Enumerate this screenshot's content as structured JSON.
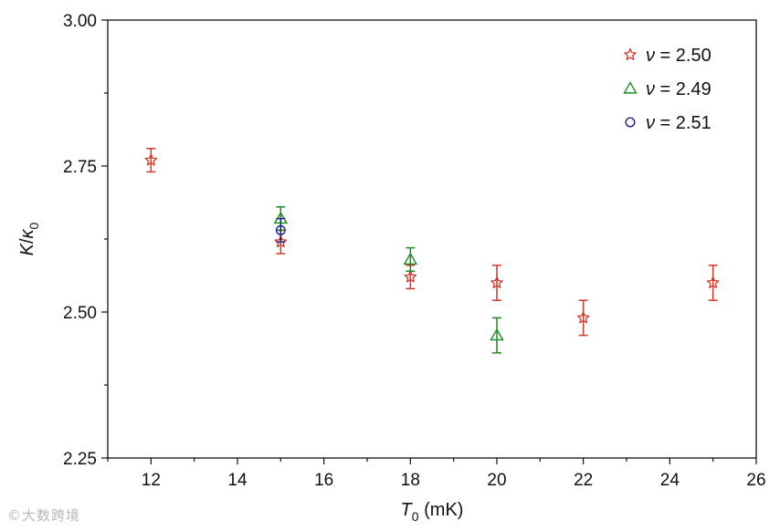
{
  "chart_data": {
    "type": "scatter",
    "xlabel": {
      "symbol": "T",
      "sub": "0",
      "unit": " (mK)"
    },
    "ylabel": {
      "num": "K",
      "den": "κ",
      "sub": "0"
    },
    "xlim": [
      11,
      26
    ],
    "ylim": [
      2.25,
      3.0
    ],
    "x_ticks": [
      12,
      14,
      16,
      18,
      20,
      22,
      24,
      26
    ],
    "y_ticks": [
      2.25,
      2.5,
      2.75,
      3.0
    ],
    "y_tick_labels": [
      "2.25",
      "2.50",
      "2.75",
      "3.00"
    ],
    "grid": false,
    "legend_position": "top-right",
    "series": [
      {
        "name": "ν = 2.50",
        "legend_symbol": "ν",
        "legend_value": " = 2.50",
        "marker": "star",
        "color": "#d03a2c",
        "x": [
          12,
          15,
          18,
          20,
          22,
          25
        ],
        "y": [
          2.76,
          2.62,
          2.56,
          2.55,
          2.49,
          2.55
        ],
        "err": [
          0.02,
          0.02,
          0.02,
          0.03,
          0.03,
          0.03
        ]
      },
      {
        "name": "ν = 2.49",
        "legend_symbol": "ν",
        "legend_value": " = 2.49",
        "marker": "triangle",
        "color": "#1f8a22",
        "x": [
          15,
          18,
          20
        ],
        "y": [
          2.66,
          2.59,
          2.46
        ],
        "err": [
          0.02,
          0.02,
          0.03
        ]
      },
      {
        "name": "ν = 2.51",
        "legend_symbol": "ν",
        "legend_value": " = 2.51",
        "marker": "circle",
        "color": "#1c1c8a",
        "x": [
          15
        ],
        "y": [
          2.64
        ],
        "err": [
          0.02
        ]
      }
    ]
  },
  "watermark": "©大数跨境"
}
